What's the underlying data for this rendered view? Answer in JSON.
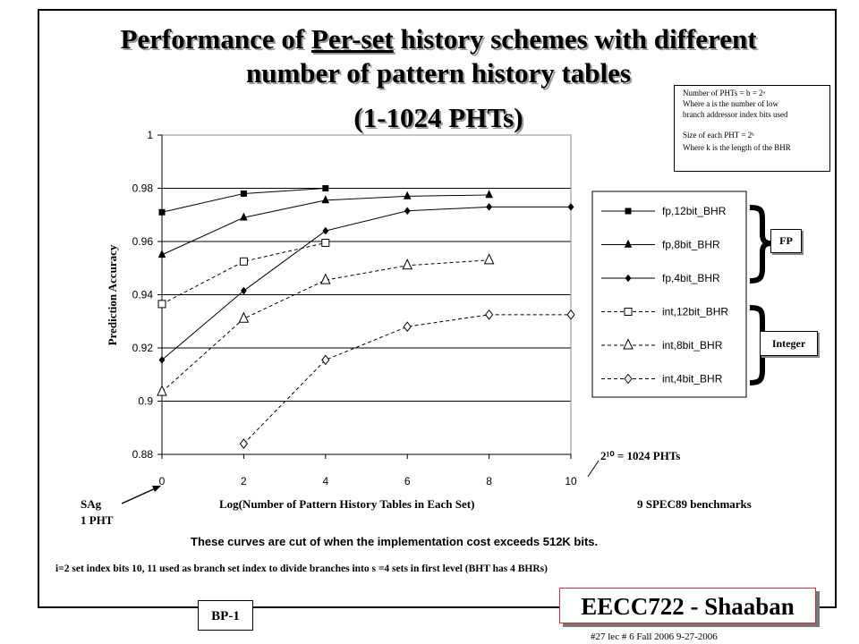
{
  "slide": {
    "title_pre": "Performance of ",
    "title_underlined": "Per-set",
    "title_post": " history schemes with different",
    "title_line2": "number of pattern history tables",
    "title_line3": "(1-1024 PHTs)",
    "note_lines": [
      "Number of PHTs = b = 2ᵃ",
      "Where a is the number of low",
      "branch addressor index bits used",
      "Size of each PHT = 2ᵏ",
      "Where k is the length of the BHR"
    ],
    "fp_label": "FP",
    "int_label": "Integer",
    "annotation_1024": "2¹⁰ = 1024 PHTs",
    "sag_label": "SAg",
    "sag_sub": "1 PHT",
    "benchmarks": "9 SPEC89 benchmarks",
    "cut_note": "These curves are cut of when the implementation cost exceeds 512K bits.",
    "index_note": "i=2 set index bits 10, 11 used as branch set index to divide branches into s =4 sets in first level (BHT has 4 BHRs)",
    "bp": "BP-1",
    "course": "EECC722 - Shaaban",
    "footer": "#27 lec # 6 Fall 2006 9-27-2006"
  },
  "chart_data": {
    "type": "line",
    "xlabel": "Log(Number of Pattern History Tables in Each Set)",
    "ylabel": "Prediction Accuracy",
    "xlim": [
      0,
      10
    ],
    "ylim": [
      0.88,
      1.0
    ],
    "xticks": [
      0,
      2,
      4,
      6,
      8,
      10
    ],
    "yticks": [
      0.88,
      0.9,
      0.92,
      0.94,
      0.96,
      0.98,
      1
    ],
    "ytick_labels": [
      "0.88",
      "0.9",
      "0.92",
      "0.94",
      "0.96",
      "0.98",
      "1"
    ],
    "grid": "horizontal",
    "legend_position": "right",
    "series": [
      {
        "name": "fp,12bit_BHR",
        "marker": "square-filled",
        "dash": "solid",
        "x": [
          0,
          2,
          4
        ],
        "y": [
          0.971,
          0.978,
          0.98
        ]
      },
      {
        "name": "fp,8bit_BHR",
        "marker": "triangle-filled",
        "dash": "solid",
        "x": [
          0,
          2,
          4,
          6,
          8
        ],
        "y": [
          0.955,
          0.969,
          0.9755,
          0.977,
          0.9775
        ]
      },
      {
        "name": "fp,4bit_BHR",
        "marker": "diamond-filled",
        "dash": "solid",
        "x": [
          0,
          2,
          4,
          6,
          8,
          10
        ],
        "y": [
          0.9155,
          0.9415,
          0.964,
          0.9715,
          0.973,
          0.973
        ]
      },
      {
        "name": "int,12bit_BHR",
        "marker": "square-open",
        "dash": "dashed",
        "x": [
          0,
          2,
          4
        ],
        "y": [
          0.9365,
          0.9525,
          0.9595
        ]
      },
      {
        "name": "int,8bit_BHR",
        "marker": "triangle-open",
        "dash": "dashed",
        "x": [
          0,
          2,
          4,
          6,
          8
        ],
        "y": [
          0.9035,
          0.931,
          0.9455,
          0.951,
          0.953
        ]
      },
      {
        "name": "int,4bit_BHR",
        "marker": "diamond-open",
        "dash": "dashed",
        "x": [
          2,
          4,
          6,
          8,
          10
        ],
        "y": [
          0.884,
          0.9155,
          0.928,
          0.9325,
          0.9325
        ]
      }
    ]
  }
}
